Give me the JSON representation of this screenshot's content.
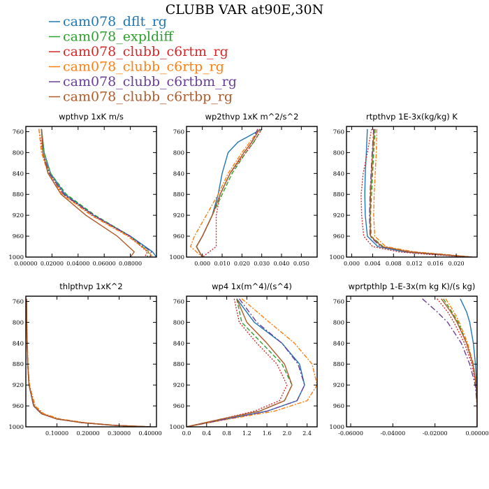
{
  "figure": {
    "title": "CLUBB VAR at90E,30N"
  },
  "legend": [
    {
      "name": "cam078_dflt_rg",
      "color": "#1f77b4",
      "dash": ""
    },
    {
      "name": "cam078_expldiff",
      "color": "#2ca02c",
      "dash": "6,3"
    },
    {
      "name": "cam078_clubb_c6rtm_rg",
      "color": "#d62728",
      "dash": "2,2"
    },
    {
      "name": "cam078_clubb_c6rtp_rg",
      "color": "#ff7f0e",
      "dash": "6,2,2,2"
    },
    {
      "name": "cam078_clubb_c6rtbm_rg",
      "color": "#6a3d9a",
      "dash": "8,3,2,3"
    },
    {
      "name": "cam078_clubb_c6rtbp_rg",
      "color": "#b05a28",
      "dash": ""
    }
  ],
  "chart_data": [
    {
      "type": "line",
      "title": "wpthvp  1xK m/s",
      "xlim": [
        0,
        0.1
      ],
      "ylim": [
        1000,
        750
      ],
      "xticks": [
        0,
        0.02,
        0.04,
        0.06,
        0.08
      ],
      "xticklabels": [
        "0.00000",
        "0.02000",
        "0.04000",
        "0.06000",
        "0.08000"
      ],
      "yticks": [
        760,
        800,
        840,
        880,
        920,
        960,
        1000
      ],
      "y": [
        755,
        800,
        840,
        880,
        920,
        960,
        990,
        1000
      ],
      "series": [
        {
          "values": [
            0.012,
            0.014,
            0.019,
            0.03,
            0.052,
            0.08,
            0.097,
            0.1
          ]
        },
        {
          "values": [
            0.012,
            0.014,
            0.019,
            0.031,
            0.053,
            0.08,
            0.094,
            0.093
          ]
        },
        {
          "values": [
            0.01,
            0.013,
            0.018,
            0.029,
            0.051,
            0.079,
            0.093,
            0.091
          ]
        },
        {
          "values": [
            0.01,
            0.012,
            0.017,
            0.028,
            0.05,
            0.078,
            0.094,
            0.097
          ]
        },
        {
          "values": [
            0.012,
            0.013,
            0.018,
            0.029,
            0.052,
            0.08,
            0.096,
            0.095
          ]
        },
        {
          "values": [
            0.012,
            0.013,
            0.017,
            0.027,
            0.046,
            0.07,
            0.083,
            0.08
          ]
        }
      ]
    },
    {
      "type": "line",
      "title": "wp2thvp  1xK m^2/s^2",
      "xlim": [
        -0.008,
        0.058
      ],
      "ylim": [
        1000,
        750
      ],
      "xticks": [
        0,
        0.01,
        0.02,
        0.03,
        0.04,
        0.05
      ],
      "xticklabels": [
        "0.000",
        "0.010",
        "0.020",
        "0.030",
        "0.040",
        "0.050"
      ],
      "yticks": [
        760,
        800,
        840,
        880,
        920,
        960,
        1000
      ],
      "y": [
        755,
        780,
        800,
        840,
        880,
        920,
        960,
        980,
        1000
      ],
      "series": [
        {
          "values": [
            0.03,
            0.018,
            0.013,
            0.01,
            0.008,
            0.005,
            0.0,
            -0.003,
            0.0
          ]
        },
        {
          "values": [
            0.03,
            0.026,
            0.022,
            0.015,
            0.01,
            0.005,
            0.0,
            -0.003,
            0.0
          ]
        },
        {
          "values": [
            0.03,
            0.026,
            0.022,
            0.014,
            0.009,
            0.007,
            0.007,
            0.007,
            0.0
          ]
        },
        {
          "values": [
            0.029,
            0.024,
            0.02,
            0.013,
            0.008,
            0.002,
            -0.004,
            -0.006,
            0.0
          ]
        },
        {
          "values": [
            0.028,
            0.025,
            0.021,
            0.014,
            0.009,
            0.005,
            0.0,
            -0.003,
            0.0
          ]
        },
        {
          "values": [
            0.029,
            0.025,
            0.021,
            0.014,
            0.009,
            0.005,
            0.0,
            -0.003,
            0.0
          ]
        }
      ]
    },
    {
      "type": "line",
      "title": "rtpthvp  1E-3x(kg/kg) K",
      "xlim": [
        -0.001,
        0.024
      ],
      "ylim": [
        1000,
        750
      ],
      "xticks": [
        0,
        0.004,
        0.008,
        0.012,
        0.016,
        0.02
      ],
      "xticklabels": [
        "0.000",
        "0.004",
        "0.008",
        "0.012",
        "0.016",
        "0.020"
      ],
      "yticks": [
        760,
        800,
        840,
        880,
        920,
        960,
        1000
      ],
      "y": [
        755,
        800,
        840,
        880,
        920,
        960,
        980,
        990,
        995,
        1000
      ],
      "series": [
        {
          "values": [
            0.003,
            0.0028,
            0.0026,
            0.0025,
            0.0026,
            0.003,
            0.005,
            0.01,
            0.016,
            0.023
          ]
        },
        {
          "values": [
            0.0045,
            0.0042,
            0.004,
            0.0038,
            0.0036,
            0.0037,
            0.006,
            0.011,
            0.017,
            0.023
          ]
        },
        {
          "values": [
            0.0038,
            0.003,
            0.0022,
            0.0018,
            0.0019,
            0.0023,
            0.004,
            0.009,
            0.015,
            0.023
          ]
        },
        {
          "values": [
            0.0048,
            0.0047,
            0.0045,
            0.0043,
            0.0042,
            0.0044,
            0.0065,
            0.012,
            0.018,
            0.023
          ]
        },
        {
          "values": [
            0.0042,
            0.0039,
            0.0037,
            0.0035,
            0.0034,
            0.0035,
            0.0055,
            0.011,
            0.017,
            0.023
          ]
        },
        {
          "values": [
            0.0043,
            0.004,
            0.0038,
            0.0036,
            0.0035,
            0.0036,
            0.0058,
            0.011,
            0.017,
            0.023
          ]
        }
      ]
    },
    {
      "type": "line",
      "title": "thlpthvp  1xK^2",
      "xlim": [
        0,
        0.42
      ],
      "ylim": [
        1000,
        750
      ],
      "xticks": [
        0.1,
        0.2,
        0.3,
        0.4
      ],
      "xticklabels": [
        "0.10000",
        "0.20000",
        "0.30000",
        "0.40000"
      ],
      "yticks": [
        760,
        800,
        840,
        880,
        920,
        960,
        1000
      ],
      "y": [
        755,
        800,
        840,
        880,
        920,
        960,
        975,
        985,
        992,
        997,
        1000
      ],
      "series": [
        {
          "values": [
            0.002,
            0.003,
            0.004,
            0.006,
            0.01,
            0.025,
            0.05,
            0.1,
            0.18,
            0.28,
            0.4
          ]
        },
        {
          "values": [
            0.002,
            0.003,
            0.004,
            0.006,
            0.01,
            0.026,
            0.052,
            0.1,
            0.18,
            0.28,
            0.4
          ]
        },
        {
          "values": [
            0.002,
            0.003,
            0.004,
            0.006,
            0.011,
            0.027,
            0.054,
            0.1,
            0.18,
            0.28,
            0.4
          ]
        },
        {
          "values": [
            0.002,
            0.003,
            0.005,
            0.007,
            0.012,
            0.03,
            0.058,
            0.11,
            0.19,
            0.29,
            0.4
          ]
        },
        {
          "values": [
            0.002,
            0.003,
            0.004,
            0.006,
            0.01,
            0.025,
            0.05,
            0.1,
            0.18,
            0.28,
            0.4
          ]
        },
        {
          "values": [
            0.002,
            0.003,
            0.004,
            0.006,
            0.01,
            0.026,
            0.051,
            0.1,
            0.18,
            0.28,
            0.4
          ]
        }
      ]
    },
    {
      "type": "line",
      "title": "wp4  1x(m^4)/(s^4)",
      "xlim": [
        0,
        2.6
      ],
      "ylim": [
        1000,
        750
      ],
      "xticks": [
        0,
        0.4,
        0.8,
        1.2,
        1.6,
        2.0,
        2.4
      ],
      "xticklabels": [
        "0.0",
        "0.4",
        "0.8",
        "1.2",
        "1.6",
        "2.0",
        "2.4"
      ],
      "yticks": [
        760,
        800,
        840,
        880,
        920,
        960,
        1000
      ],
      "y": [
        755,
        800,
        840,
        880,
        920,
        950,
        970,
        985,
        1000
      ],
      "series": [
        {
          "values": [
            1.0,
            1.35,
            1.9,
            2.25,
            2.35,
            2.2,
            1.6,
            0.8,
            0.0
          ]
        },
        {
          "values": [
            1.0,
            1.1,
            1.5,
            1.9,
            2.1,
            1.95,
            1.45,
            0.7,
            0.0
          ]
        },
        {
          "values": [
            0.95,
            1.05,
            1.4,
            1.8,
            2.0,
            1.85,
            1.35,
            0.7,
            0.0
          ]
        },
        {
          "values": [
            1.1,
            1.65,
            2.15,
            2.5,
            2.6,
            2.4,
            1.75,
            0.85,
            0.0
          ]
        },
        {
          "values": [
            1.05,
            1.4,
            1.9,
            2.22,
            2.35,
            2.2,
            1.6,
            0.8,
            0.0
          ]
        },
        {
          "values": [
            1.0,
            1.2,
            1.6,
            1.95,
            2.1,
            1.95,
            1.45,
            0.7,
            0.0
          ]
        }
      ]
    },
    {
      "type": "line",
      "title": "wprtpthlp  1-E-3x(m kg K)/(s kg)",
      "xlim": [
        -0.062,
        0.0
      ],
      "ylim": [
        1000,
        750
      ],
      "xticks": [
        -0.06,
        -0.04,
        -0.02,
        0.0
      ],
      "xticklabels": [
        "-0.06000",
        "-0.04000",
        "-0.02000",
        "0.00000"
      ],
      "yticks": [
        760,
        800,
        840,
        880,
        920,
        960,
        1000
      ],
      "y": [
        755,
        780,
        800,
        840,
        880,
        920,
        960,
        1000
      ],
      "series": [
        {
          "values": [
            -0.008,
            -0.005,
            -0.0035,
            -0.0018,
            -0.0008,
            -0.0002,
            0.0,
            0.0
          ]
        },
        {
          "values": [
            -0.016,
            -0.012,
            -0.009,
            -0.005,
            -0.002,
            -0.0005,
            0.0,
            0.0
          ]
        },
        {
          "values": [
            -0.019,
            -0.014,
            -0.011,
            -0.006,
            -0.0025,
            -0.0006,
            0.0,
            0.0
          ]
        },
        {
          "values": [
            -0.015,
            -0.011,
            -0.0085,
            -0.0045,
            -0.0018,
            -0.0004,
            0.0,
            0.0
          ]
        },
        {
          "values": [
            -0.026,
            -0.019,
            -0.014,
            -0.0075,
            -0.0035,
            -0.0009,
            0.0,
            0.0
          ]
        },
        {
          "values": [
            -0.017,
            -0.0125,
            -0.0095,
            -0.005,
            -0.002,
            -0.0005,
            0.0,
            0.0
          ]
        }
      ]
    }
  ]
}
